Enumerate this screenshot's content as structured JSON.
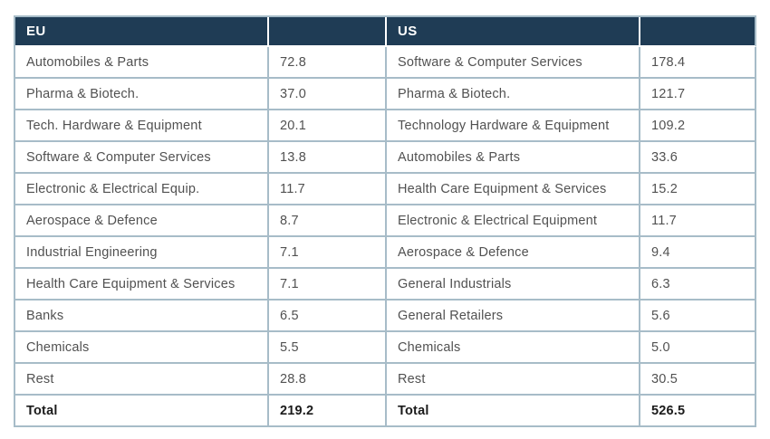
{
  "table": {
    "eu_header": "EU",
    "us_header": "US",
    "rows": [
      {
        "eu_label": "Automobiles & Parts",
        "eu_value": "72.8",
        "us_label": "Software & Computer Services",
        "us_value": "178.4"
      },
      {
        "eu_label": "Pharma & Biotech.",
        "eu_value": "37.0",
        "us_label": "Pharma & Biotech.",
        "us_value": "121.7"
      },
      {
        "eu_label": "Tech. Hardware & Equipment",
        "eu_value": "20.1",
        "us_label": "Technology Hardware & Equipment",
        "us_value": "109.2"
      },
      {
        "eu_label": "Software & Computer Services",
        "eu_value": "13.8",
        "us_label": "Automobiles & Parts",
        "us_value": "33.6"
      },
      {
        "eu_label": "Electronic & Electrical Equip.",
        "eu_value": "11.7",
        "us_label": "Health Care Equipment & Services",
        "us_value": "15.2"
      },
      {
        "eu_label": "Aerospace & Defence",
        "eu_value": "8.7",
        "us_label": "Electronic & Electrical Equipment",
        "us_value": "11.7"
      },
      {
        "eu_label": "Industrial Engineering",
        "eu_value": "7.1",
        "us_label": "Aerospace & Defence",
        "us_value": "9.4"
      },
      {
        "eu_label": "Health Care Equipment & Services",
        "eu_value": "7.1",
        "us_label": "General Industrials",
        "us_value": "6.3"
      },
      {
        "eu_label": "Banks",
        "eu_value": "6.5",
        "us_label": "General Retailers",
        "us_value": "5.6"
      },
      {
        "eu_label": "Chemicals",
        "eu_value": "5.5",
        "us_label": "Chemicals",
        "us_value": "5.0"
      },
      {
        "eu_label": "Rest",
        "eu_value": "28.8",
        "us_label": "Rest",
        "us_value": "30.5"
      }
    ],
    "total_row": {
      "eu_label": "Total",
      "eu_value": "219.2",
      "us_label": "Total",
      "us_value": "526.5"
    }
  },
  "colors": {
    "header_background": "#1f3c55",
    "header_text": "#ffffff",
    "cell_border": "#a7bcc8",
    "body_text": "#515151",
    "total_text": "#1b1b1b"
  },
  "chart_data": [
    {
      "type": "table",
      "title": "EU",
      "categories": [
        "Automobiles & Parts",
        "Pharma & Biotech.",
        "Tech. Hardware & Equipment",
        "Software & Computer Services",
        "Electronic & Electrical Equip.",
        "Aerospace & Defence",
        "Industrial Engineering",
        "Health Care Equipment & Services",
        "Banks",
        "Chemicals",
        "Rest"
      ],
      "values": [
        72.8,
        37.0,
        20.1,
        13.8,
        11.7,
        8.7,
        7.1,
        7.1,
        6.5,
        5.5,
        28.8
      ],
      "total": 219.2
    },
    {
      "type": "table",
      "title": "US",
      "categories": [
        "Software & Computer Services",
        "Pharma & Biotech.",
        "Technology Hardware & Equipment",
        "Automobiles & Parts",
        "Health Care Equipment & Services",
        "Electronic & Electrical Equipment",
        "Aerospace & Defence",
        "General Industrials",
        "General Retailers",
        "Chemicals",
        "Rest"
      ],
      "values": [
        178.4,
        121.7,
        109.2,
        33.6,
        15.2,
        11.7,
        9.4,
        6.3,
        5.6,
        5.0,
        30.5
      ],
      "total": 526.5
    }
  ]
}
